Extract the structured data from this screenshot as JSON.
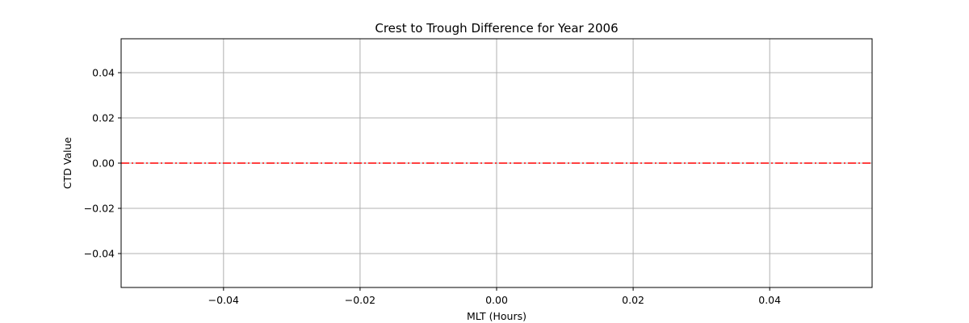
{
  "chart_data": {
    "type": "line",
    "title": "Crest to Trough Difference for Year 2006",
    "xlabel": "MLT (Hours)",
    "ylabel": "CTD Value",
    "xlim": [
      -0.055,
      0.055
    ],
    "ylim": [
      -0.055,
      0.055
    ],
    "xticks": [
      -0.04,
      -0.02,
      0.0,
      0.02,
      0.04
    ],
    "xtick_labels": [
      "−0.04",
      "−0.02",
      "0.00",
      "0.02",
      "0.04"
    ],
    "yticks": [
      -0.04,
      -0.02,
      0.0,
      0.02,
      0.04
    ],
    "ytick_labels": [
      "−0.04",
      "−0.02",
      "0.00",
      "0.02",
      "0.04"
    ],
    "grid": true,
    "series": [
      {
        "color": "#ff0000",
        "style": "dash-dot",
        "x": [
          -0.055,
          0.055
        ],
        "y": [
          0.0,
          0.0
        ]
      }
    ]
  }
}
